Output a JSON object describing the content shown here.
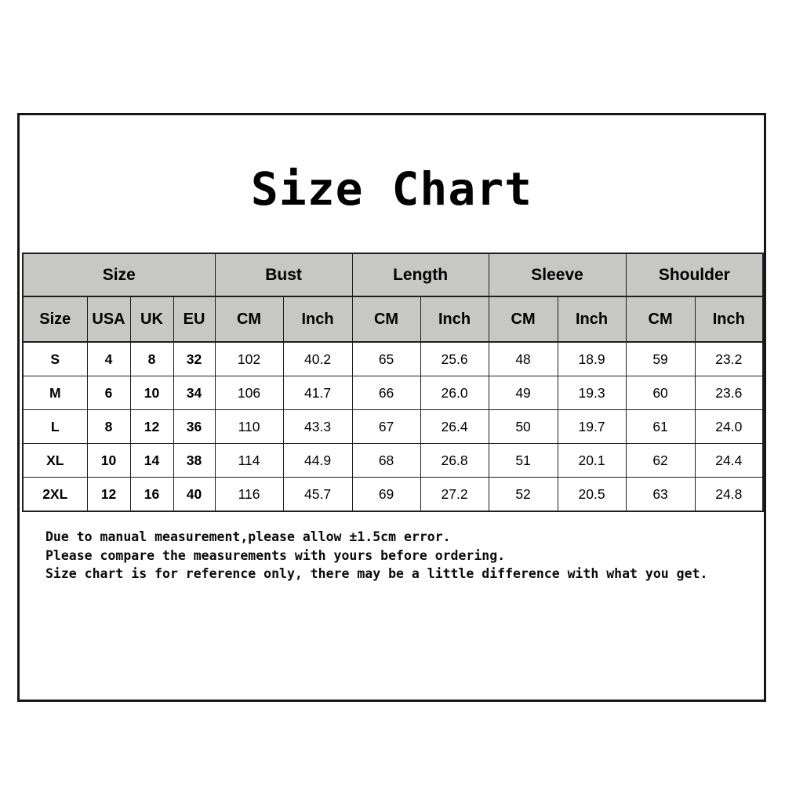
{
  "title": "Size Chart",
  "table": {
    "groups": [
      {
        "label": "Size",
        "span": 4
      },
      {
        "label": "Bust",
        "span": 2
      },
      {
        "label": "Length",
        "span": 2
      },
      {
        "label": "Sleeve",
        "span": 2
      },
      {
        "label": "Shoulder",
        "span": 2
      }
    ],
    "columns": [
      "Size",
      "USA",
      "UK",
      "EU",
      "CM",
      "Inch",
      "CM",
      "Inch",
      "CM",
      "Inch",
      "CM",
      "Inch"
    ],
    "rows": [
      [
        "S",
        "4",
        "8",
        "32",
        "102",
        "40.2",
        "65",
        "25.6",
        "48",
        "18.9",
        "59",
        "23.2"
      ],
      [
        "M",
        "6",
        "10",
        "34",
        "106",
        "41.7",
        "66",
        "26.0",
        "49",
        "19.3",
        "60",
        "23.6"
      ],
      [
        "L",
        "8",
        "12",
        "36",
        "110",
        "43.3",
        "67",
        "26.4",
        "50",
        "19.7",
        "61",
        "24.0"
      ],
      [
        "XL",
        "10",
        "14",
        "38",
        "114",
        "44.9",
        "68",
        "26.8",
        "51",
        "20.1",
        "62",
        "24.4"
      ],
      [
        "2XL",
        "12",
        "16",
        "40",
        "116",
        "45.7",
        "69",
        "27.2",
        "52",
        "20.5",
        "63",
        "24.8"
      ]
    ]
  },
  "notes": [
    "Due to manual measurement,please allow ±1.5cm error.",
    "Please compare the measurements with yours before ordering.",
    "Size chart is for reference only, there may be a little difference with what you get."
  ],
  "colors": {
    "header_bg": "#c7c7c4",
    "table_border": "#1e1e1e",
    "frame_border": "#161616",
    "text": "#000000"
  }
}
